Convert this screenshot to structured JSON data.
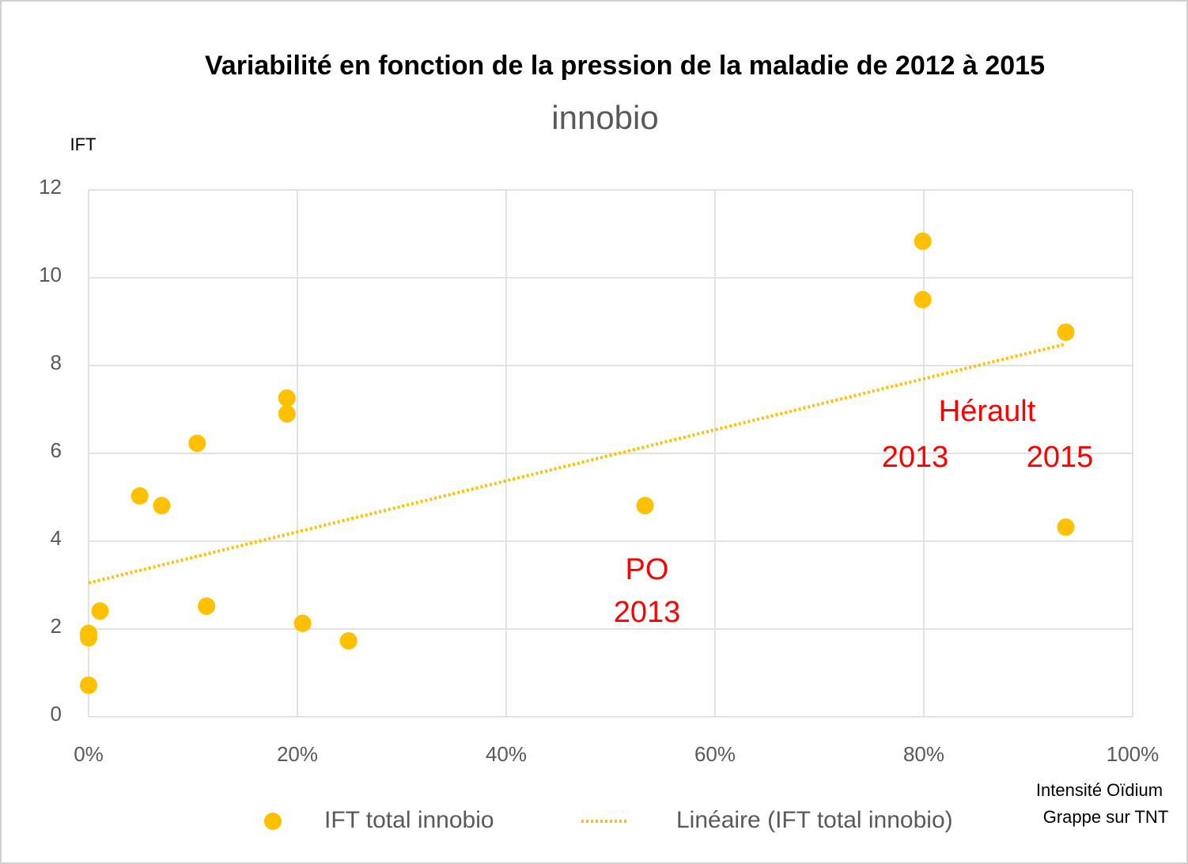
{
  "chart_data": {
    "type": "scatter",
    "title": "Variabilité en fonction de la pression de la maladie de 2012 à 2015",
    "subtitle": "innobio",
    "y_label": "IFT",
    "x_label": [
      "Intensité Oïdium",
      "Grappe sur TNT"
    ],
    "xlim": [
      0,
      100
    ],
    "ylim": [
      0,
      12
    ],
    "xticks": [
      {
        "value": 0,
        "label": "0%"
      },
      {
        "value": 20,
        "label": "20%"
      },
      {
        "value": 40,
        "label": "40%"
      },
      {
        "value": 60,
        "label": "60%"
      },
      {
        "value": 80,
        "label": "80%"
      },
      {
        "value": 100,
        "label": "100%"
      }
    ],
    "yticks": [
      0,
      2,
      4,
      6,
      8,
      10,
      12
    ],
    "grid": true,
    "series": [
      {
        "name": "IFT total innobio",
        "color": "#ffc000",
        "x": [
          0,
          0,
          0,
          1.1,
          4.9,
          7.0,
          10.4,
          11.3,
          19.0,
          19.0,
          20.5,
          24.9,
          53.3,
          79.9,
          79.9,
          93.6,
          93.6
        ],
        "values": [
          0.72,
          1.8,
          1.9,
          2.41,
          5.03,
          4.81,
          6.23,
          2.52,
          7.26,
          6.9,
          2.13,
          1.73,
          4.81,
          10.83,
          9.5,
          8.76,
          4.32
        ]
      },
      {
        "name": "Linéaire (IFT total innobio)",
        "color": "#ffc000",
        "style": "dotted",
        "x": [
          0,
          93.6
        ],
        "values": [
          3.05,
          8.49
        ]
      }
    ],
    "annotations": [
      "PO",
      "2013",
      "Hérault",
      "2013",
      "2015"
    ],
    "annotation_color": "#ff0000"
  }
}
